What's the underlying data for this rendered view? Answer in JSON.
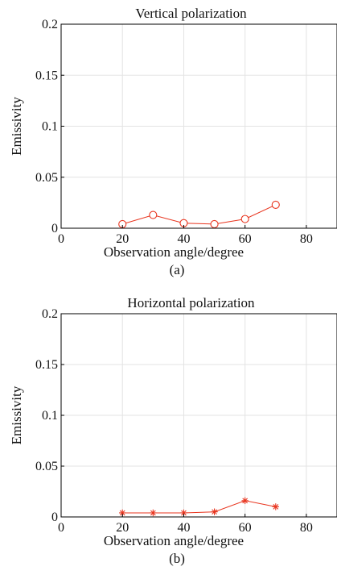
{
  "chart_data": [
    {
      "type": "line",
      "title": "Vertical polarization",
      "xlabel": "Observation angle/degree",
      "ylabel": "Emissivity",
      "caption": "(a)",
      "xlim": [
        0,
        90
      ],
      "ylim": [
        0,
        0.2
      ],
      "x_ticks": [
        "0",
        "20",
        "40",
        "60",
        "80"
      ],
      "y_ticks": [
        "0",
        "0.05",
        "0.1",
        "0.15",
        "0.2"
      ],
      "grid": true,
      "marker": "circle",
      "color": "#e8351f",
      "x": [
        20,
        30,
        40,
        50,
        60,
        70
      ],
      "y": [
        0.004,
        0.013,
        0.005,
        0.004,
        0.009,
        0.023
      ]
    },
    {
      "type": "line",
      "title": "Horizontal polarization",
      "xlabel": "Observation angle/degree",
      "ylabel": "Emissivity",
      "caption": "(b)",
      "xlim": [
        0,
        90
      ],
      "ylim": [
        0,
        0.2
      ],
      "x_ticks": [
        "0",
        "20",
        "40",
        "60",
        "80"
      ],
      "y_ticks": [
        "0",
        "0.05",
        "0.1",
        "0.15",
        "0.2"
      ],
      "grid": true,
      "marker": "asterisk",
      "color": "#e8351f",
      "x": [
        20,
        30,
        40,
        50,
        60,
        70
      ],
      "y": [
        0.004,
        0.004,
        0.004,
        0.005,
        0.016,
        0.01
      ]
    }
  ]
}
